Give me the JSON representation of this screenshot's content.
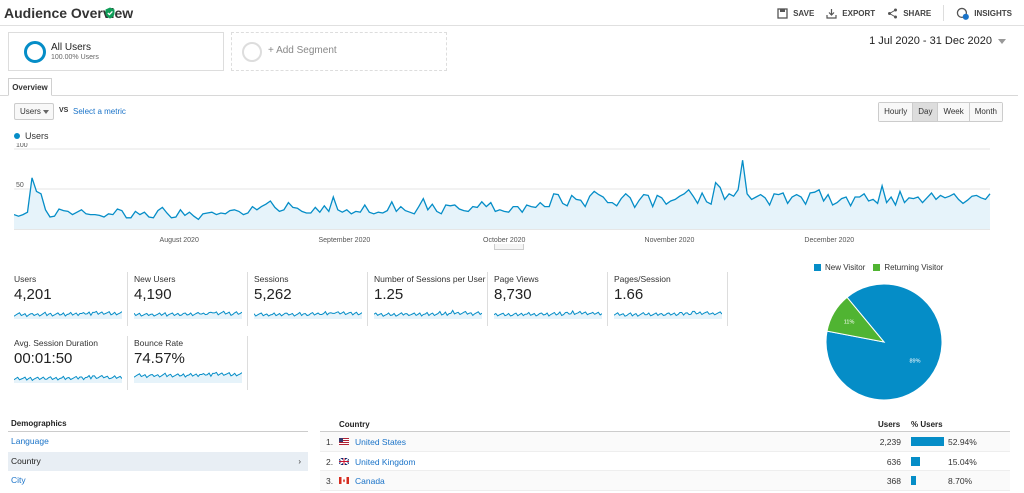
{
  "header": {
    "title": "Audience Overview",
    "actions": [
      {
        "label": "SAVE",
        "icon": "save-icon"
      },
      {
        "label": "EXPORT",
        "icon": "export-icon"
      },
      {
        "label": "SHARE",
        "icon": "share-icon"
      },
      {
        "label": "INSIGHTS",
        "icon": "insights-icon",
        "badge": "6"
      }
    ]
  },
  "segments": {
    "all": {
      "title": "All Users",
      "subtitle": "100.00% Users"
    },
    "add": {
      "label": "+ Add Segment"
    }
  },
  "date_range": "1 Jul 2020 - 31 Dec 2020",
  "tabs": [
    {
      "label": "Overview"
    }
  ],
  "metric_controls": {
    "metric": "Users",
    "vs": "VS",
    "select_metric": "Select a metric",
    "granularity": [
      "Hourly",
      "Day",
      "Week",
      "Month"
    ],
    "active_granularity": "Day"
  },
  "colors": {
    "primary": "#058dc7",
    "secondary": "#50b432",
    "area_fill": "#e6f3fa",
    "link": "#1a73c8"
  },
  "chart_data": {
    "type": "area",
    "series_name": "Users",
    "yticks": [
      "100",
      "50"
    ],
    "ylim": [
      0,
      100
    ],
    "xtick_labels": [
      "August 2020",
      "September 2020",
      "October 2020",
      "November 2020",
      "December 2020"
    ],
    "values": [
      18,
      16,
      18,
      21,
      64,
      47,
      44,
      24,
      15,
      16,
      25,
      23,
      22,
      18,
      21,
      24,
      19,
      18,
      18,
      17,
      15,
      19,
      18,
      25,
      23,
      14,
      14,
      22,
      18,
      21,
      15,
      14,
      23,
      27,
      20,
      14,
      15,
      24,
      17,
      21,
      16,
      12,
      19,
      20,
      21,
      18,
      20,
      19,
      23,
      24,
      22,
      18,
      20,
      28,
      24,
      28,
      31,
      35,
      27,
      22,
      24,
      33,
      27,
      26,
      22,
      20,
      20,
      27,
      21,
      29,
      22,
      40,
      24,
      21,
      24,
      19,
      22,
      21,
      30,
      21,
      19,
      21,
      20,
      23,
      34,
      22,
      28,
      23,
      21,
      19,
      28,
      38,
      24,
      31,
      22,
      19,
      30,
      29,
      30,
      25,
      23,
      22,
      28,
      27,
      34,
      28,
      33,
      22,
      24,
      22,
      21,
      28,
      28,
      21,
      30,
      28,
      27,
      33,
      28,
      28,
      44,
      43,
      32,
      29,
      42,
      37,
      36,
      28,
      41,
      47,
      43,
      40,
      33,
      33,
      29,
      38,
      44,
      39,
      27,
      36,
      43,
      42,
      28,
      42,
      39,
      31,
      35,
      37,
      41,
      44,
      49,
      41,
      32,
      45,
      34,
      31,
      58,
      52,
      37,
      44,
      41,
      49,
      86,
      44,
      37,
      40,
      43,
      39,
      30,
      44,
      43,
      45,
      32,
      40,
      43,
      40,
      31,
      45,
      46,
      49,
      35,
      43,
      30,
      33,
      38,
      40,
      29,
      40,
      40,
      44,
      35,
      37,
      32,
      54,
      33,
      40,
      30,
      47,
      33,
      39,
      38,
      40,
      33,
      39,
      45,
      37,
      42,
      39,
      41,
      44,
      37,
      32,
      36,
      41,
      42,
      39,
      37,
      44
    ]
  },
  "metrics": [
    {
      "label": "Users",
      "value": "4,201"
    },
    {
      "label": "New Users",
      "value": "4,190"
    },
    {
      "label": "Sessions",
      "value": "5,262"
    },
    {
      "label": "Number of Sessions per User",
      "value": "1.25"
    },
    {
      "label": "Page Views",
      "value": "8,730"
    },
    {
      "label": "Pages/Session",
      "value": "1.66"
    },
    {
      "label": "Avg. Session Duration",
      "value": "00:01:50"
    },
    {
      "label": "Bounce Rate",
      "value": "74.57%"
    }
  ],
  "pie": {
    "type": "pie",
    "legend": [
      "New Visitor",
      "Returning Visitor"
    ],
    "slices": [
      {
        "name": "New Visitor",
        "value": 89,
        "label": "89%",
        "color": "#058dc7"
      },
      {
        "name": "Returning Visitor",
        "value": 11,
        "label": "11%",
        "color": "#50b432"
      }
    ]
  },
  "demographics": {
    "heading": "Demographics",
    "items": [
      {
        "label": "Language",
        "active": false
      },
      {
        "label": "Country",
        "active": true
      },
      {
        "label": "City",
        "active": false
      }
    ],
    "arrow": "›"
  },
  "country_table": {
    "headers": {
      "country": "Country",
      "users": "Users",
      "pct": "% Users"
    },
    "rows": [
      {
        "rank": "1.",
        "flag": "us-flag-icon",
        "name": "United States",
        "users": "2,239",
        "pct": "52.94%",
        "share": 52.94
      },
      {
        "rank": "2.",
        "flag": "uk-flag-icon",
        "name": "United Kingdom",
        "users": "636",
        "pct": "15.04%",
        "share": 15.04
      },
      {
        "rank": "3.",
        "flag": "ca-flag-icon",
        "name": "Canada",
        "users": "368",
        "pct": "8.70%",
        "share": 8.7
      }
    ]
  }
}
